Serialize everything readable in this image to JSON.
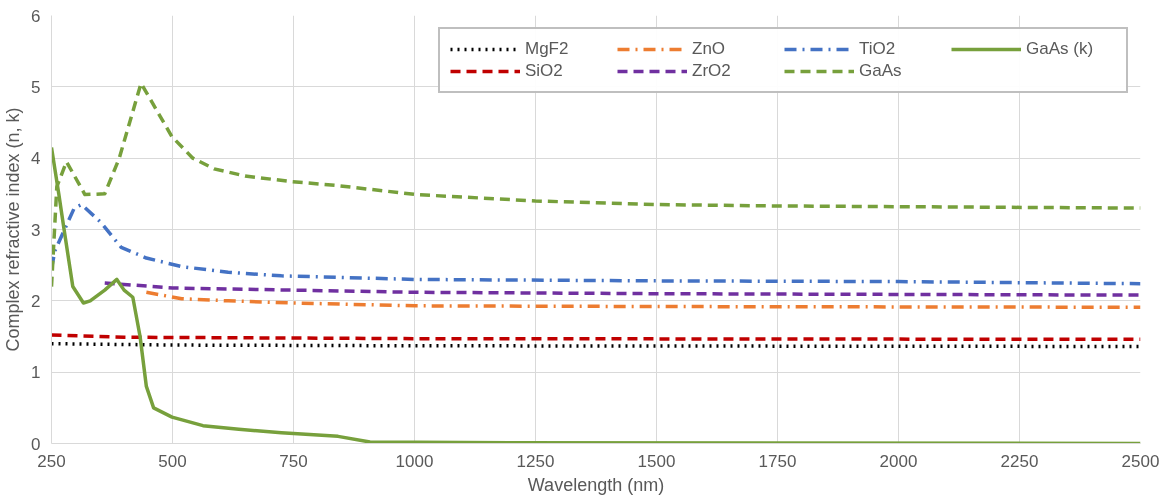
{
  "chart_data": {
    "type": "line",
    "xlabel": "Wavelength (nm)",
    "ylabel": "Complex refractive index (n, k)",
    "xlim": [
      250,
      2500
    ],
    "xticks": [
      250,
      500,
      750,
      1000,
      1250,
      1500,
      1750,
      2000,
      2250,
      2500
    ],
    "ylim": [
      0,
      6
    ],
    "yticks": [
      0,
      1,
      2,
      3,
      4,
      5,
      6
    ],
    "grid": true,
    "legend": "top right",
    "marker": "none",
    "series": [
      {
        "name": "MgF2",
        "color": "#000000",
        "line_style": "dotted",
        "x": [
          250,
          500,
          1000,
          2500
        ],
        "values": [
          1.4,
          1.38,
          1.37,
          1.36
        ]
      },
      {
        "name": "SiO2",
        "color": "#c00000",
        "line_style": "dashed",
        "x": [
          250,
          400,
          1000,
          2500
        ],
        "values": [
          1.52,
          1.49,
          1.47,
          1.46
        ]
      },
      {
        "name": "ZnO",
        "color": "#ed7d31",
        "line_style": "dashdot",
        "x": [
          446,
          519,
          615,
          750,
          1000,
          1500,
          2500
        ],
        "values": [
          2.12,
          2.03,
          2.0,
          1.97,
          1.93,
          1.92,
          1.91
        ]
      },
      {
        "name": "ZrO2",
        "color": "#7030a0",
        "line_style": "dashed",
        "x": [
          360,
          500,
          750,
          1000,
          1500,
          2500
        ],
        "values": [
          2.25,
          2.18,
          2.15,
          2.12,
          2.1,
          2.08
        ]
      },
      {
        "name": "TiO2",
        "color": "#4472c4",
        "line_style": "dashdot",
        "x": [
          250,
          257,
          297,
          312,
          352,
          394,
          446,
          519,
          615,
          725,
          893,
          1000,
          1500,
          2000,
          2500
        ],
        "values": [
          2.45,
          2.7,
          3.3,
          3.35,
          3.1,
          2.75,
          2.6,
          2.48,
          2.4,
          2.35,
          2.32,
          2.3,
          2.28,
          2.27,
          2.24
        ]
      },
      {
        "name": "GaAs",
        "color": "#77a03c",
        "line_style": "dashed",
        "x": [
          250,
          261,
          281,
          319,
          360,
          390,
          435,
          499,
          542,
          586,
          650,
          747,
          835,
          1003,
          1250,
          1500,
          1750,
          2000,
          2500
        ],
        "values": [
          2.2,
          3.6,
          3.95,
          3.49,
          3.5,
          4.0,
          5.05,
          4.3,
          4.0,
          3.85,
          3.75,
          3.67,
          3.62,
          3.49,
          3.4,
          3.35,
          3.33,
          3.32,
          3.3
        ]
      },
      {
        "name": "GaAs (k)",
        "color": "#77a03c",
        "line_style": "solid",
        "x": [
          250,
          265,
          276,
          294,
          316,
          330,
          360,
          385,
          400,
          418,
          433,
          446,
          461,
          499,
          563,
          637,
          725,
          842,
          908,
          1200,
          2500
        ],
        "values": [
          4.15,
          3.5,
          3.0,
          2.2,
          1.97,
          2.0,
          2.15,
          2.3,
          2.15,
          2.05,
          1.5,
          0.8,
          0.5,
          0.37,
          0.25,
          0.2,
          0.15,
          0.1,
          0.02,
          0.01,
          0.0
        ]
      }
    ]
  }
}
